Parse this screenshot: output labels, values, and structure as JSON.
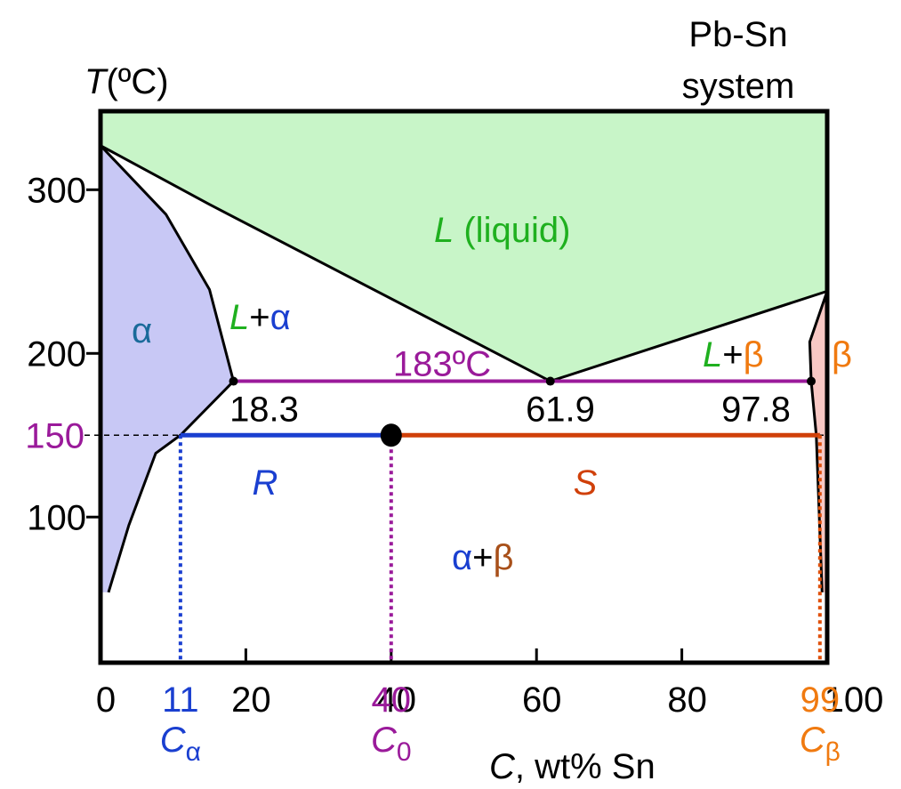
{
  "chart_data": {
    "type": "phase-diagram",
    "title": [
      "Pb-Sn",
      "system"
    ],
    "y_label": {
      "symbol": "T",
      "text": "(ºC)"
    },
    "x_label": {
      "symbol": "C",
      "text": ", wt% Sn"
    },
    "xlim": [
      0,
      100
    ],
    "ylim": [
      11,
      348
    ],
    "xticks": [
      0,
      20,
      40,
      60,
      80,
      100
    ],
    "yticks": [
      100,
      200,
      300
    ],
    "colors": {
      "liquid": "#c8f5c8",
      "alpha": "#c8c8f5",
      "beta": "#f8c8c4"
    },
    "liquidus": {
      "x": [
        0,
        15,
        61.9,
        100
      ],
      "y": [
        327,
        291,
        183,
        238
      ]
    },
    "alpha_boundary": {
      "x": [
        0,
        9,
        15,
        18.3,
        11,
        7.6,
        3.9,
        1.1
      ],
      "y": [
        327,
        285,
        239,
        183,
        150,
        139,
        95,
        54
      ]
    },
    "beta_boundary": {
      "x": [
        100,
        97.6,
        97.8,
        98.5,
        99.3
      ],
      "y": [
        238,
        207,
        183,
        150,
        54
      ]
    },
    "eutectic": {
      "temperature": {
        "value": 183,
        "label": "183ºC"
      },
      "compositions": [
        18.3,
        61.9,
        97.8
      ]
    },
    "tie_line": {
      "temperature": 150,
      "compositions": [
        11,
        40,
        99
      ],
      "symbols": [
        {
          "symbol": "C",
          "sub": "α"
        },
        {
          "symbol": "C",
          "sub": "0"
        },
        {
          "symbol": "C",
          "sub": "β"
        }
      ],
      "segments": [
        "R",
        "S"
      ]
    },
    "regions": {
      "liquid": [
        "L",
        " (liquid)"
      ],
      "alpha_liquid": [
        "L",
        "+",
        "α"
      ],
      "alpha": "α",
      "beta_liquid": [
        "L",
        "+",
        "β"
      ],
      "beta": "β",
      "alpha_beta": [
        "α",
        "+",
        "β"
      ]
    }
  }
}
